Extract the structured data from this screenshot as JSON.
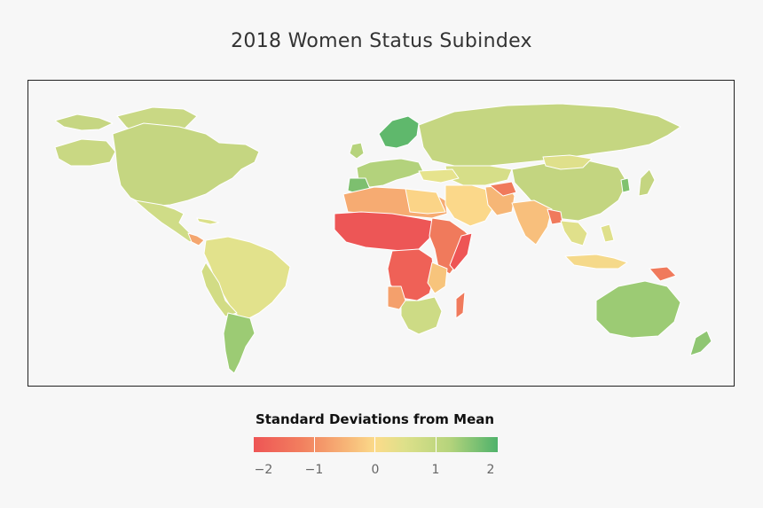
{
  "title": "2018 Women Status Subindex",
  "legend": {
    "title": "Standard Deviations from Mean",
    "ticks": [
      "−2",
      "−1",
      "0",
      "1",
      "2"
    ],
    "colors": {
      "low": "#ee5555",
      "mid": "#fbdb8a",
      "high": "#4fb26b"
    }
  },
  "map": {
    "projection": "world",
    "border_color": "#ffffff",
    "ocean_color": "#f7f7f7",
    "regions": [
      {
        "name": "North America",
        "value": 0.9
      },
      {
        "name": "Mexico & Central America",
        "value": 0.7
      },
      {
        "name": "Greenland",
        "value": 0.8
      },
      {
        "name": "South America (north)",
        "value": 0.4
      },
      {
        "name": "Argentina & Chile",
        "value": 1.3
      },
      {
        "name": "Western Europe",
        "value": 1.3
      },
      {
        "name": "Nordics",
        "value": 2.0
      },
      {
        "name": "Russia & Central Asia",
        "value": 0.8
      },
      {
        "name": "China",
        "value": 0.8
      },
      {
        "name": "North Africa",
        "value": -0.8
      },
      {
        "name": "Sahel & Central Africa",
        "value": -2.0
      },
      {
        "name": "East Africa",
        "value": -1.5
      },
      {
        "name": "Southern Africa",
        "value": 0.7
      },
      {
        "name": "Middle East",
        "value": -0.1
      },
      {
        "name": "South Asia",
        "value": -0.8
      },
      {
        "name": "Southeast Asia",
        "value": 0.4
      },
      {
        "name": "Australia",
        "value": 1.2
      },
      {
        "name": "New Zealand",
        "value": 1.4
      }
    ]
  }
}
